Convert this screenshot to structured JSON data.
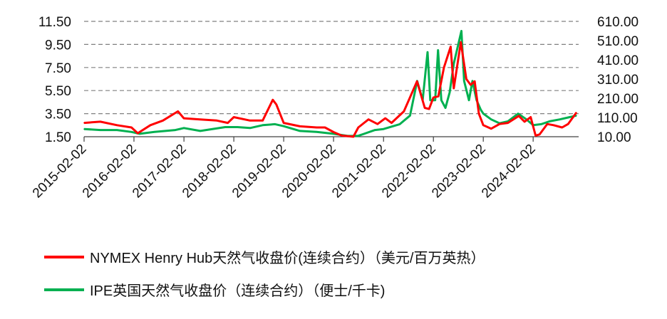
{
  "chart_data": {
    "type": "line",
    "x_tick_labels": [
      "2015-02-02",
      "2016-02-02",
      "2017-02-02",
      "2018-02-02",
      "2019-02-02",
      "2020-02-02",
      "2021-02-02",
      "2022-02-02",
      "2023-02-02",
      "2024-02-02"
    ],
    "y_left": {
      "ticks": [
        "1.50",
        "3.50",
        "5.50",
        "7.50",
        "9.50",
        "11.50"
      ],
      "range": [
        1.5,
        11.5
      ]
    },
    "y_right": {
      "ticks": [
        "10.00",
        "110.00",
        "210.00",
        "310.00",
        "410.00",
        "510.00",
        "610.00"
      ],
      "range": [
        10,
        610
      ]
    },
    "grid": "dashed horizontal",
    "legend_position": "bottom",
    "series": [
      {
        "name": "NYMEX Henry Hub天然气收盘价(连续合约）（美元/百万英热）",
        "axis": "left",
        "color": "#ff0000",
        "points": [
          [
            "2015-02-02",
            2.7
          ],
          [
            "2015-06-01",
            2.8
          ],
          [
            "2015-10-01",
            2.5
          ],
          [
            "2016-01-15",
            2.3
          ],
          [
            "2016-03-01",
            1.8
          ],
          [
            "2016-06-01",
            2.5
          ],
          [
            "2016-09-01",
            2.9
          ],
          [
            "2016-12-20",
            3.7
          ],
          [
            "2017-02-01",
            3.1
          ],
          [
            "2017-06-01",
            3.0
          ],
          [
            "2017-10-01",
            2.9
          ],
          [
            "2017-12-20",
            2.7
          ],
          [
            "2018-02-02",
            3.2
          ],
          [
            "2018-06-01",
            2.9
          ],
          [
            "2018-09-01",
            2.9
          ],
          [
            "2018-11-14",
            4.7
          ],
          [
            "2018-12-10",
            4.3
          ],
          [
            "2019-02-02",
            2.7
          ],
          [
            "2019-06-01",
            2.4
          ],
          [
            "2019-10-01",
            2.3
          ],
          [
            "2019-12-01",
            2.3
          ],
          [
            "2020-02-02",
            1.9
          ],
          [
            "2020-04-01",
            1.6
          ],
          [
            "2020-06-26",
            1.5
          ],
          [
            "2020-08-01",
            2.3
          ],
          [
            "2020-10-15",
            3.0
          ],
          [
            "2020-12-20",
            2.6
          ],
          [
            "2021-02-15",
            3.1
          ],
          [
            "2021-04-01",
            2.7
          ],
          [
            "2021-07-01",
            3.7
          ],
          [
            "2021-10-05",
            6.3
          ],
          [
            "2021-12-01",
            4.0
          ],
          [
            "2022-01-01",
            3.9
          ],
          [
            "2022-02-02",
            4.9
          ],
          [
            "2022-03-10",
            5.0
          ],
          [
            "2022-04-20",
            7.5
          ],
          [
            "2022-06-08",
            9.3
          ],
          [
            "2022-07-01",
            5.7
          ],
          [
            "2022-08-22",
            9.7
          ],
          [
            "2022-10-01",
            6.5
          ],
          [
            "2022-11-01",
            6.0
          ],
          [
            "2022-12-01",
            6.3
          ],
          [
            "2023-01-01",
            3.5
          ],
          [
            "2023-02-02",
            2.5
          ],
          [
            "2023-04-01",
            2.2
          ],
          [
            "2023-06-01",
            2.6
          ],
          [
            "2023-08-01",
            2.7
          ],
          [
            "2023-10-20",
            3.3
          ],
          [
            "2023-12-01",
            2.8
          ],
          [
            "2024-01-15",
            3.2
          ],
          [
            "2024-02-20",
            1.6
          ],
          [
            "2024-03-20",
            1.7
          ],
          [
            "2024-05-15",
            2.6
          ],
          [
            "2024-07-01",
            2.5
          ],
          [
            "2024-09-01",
            2.3
          ],
          [
            "2024-10-15",
            2.6
          ],
          [
            "2024-12-15",
            3.6
          ]
        ]
      },
      {
        "name": "IPE英国天然气收盘价（连续合约）（便士/千卡)",
        "axis": "right",
        "color": "#00b050",
        "points": [
          [
            "2015-02-02",
            50
          ],
          [
            "2015-06-01",
            45
          ],
          [
            "2015-10-01",
            45
          ],
          [
            "2016-01-15",
            35
          ],
          [
            "2016-03-15",
            25
          ],
          [
            "2016-07-01",
            35
          ],
          [
            "2016-12-01",
            45
          ],
          [
            "2017-02-02",
            55
          ],
          [
            "2017-06-01",
            40
          ],
          [
            "2017-12-01",
            60
          ],
          [
            "2018-03-01",
            60
          ],
          [
            "2018-06-01",
            55
          ],
          [
            "2018-09-01",
            70
          ],
          [
            "2018-12-01",
            75
          ],
          [
            "2019-02-02",
            65
          ],
          [
            "2019-06-01",
            40
          ],
          [
            "2019-10-01",
            35
          ],
          [
            "2020-02-02",
            25
          ],
          [
            "2020-05-15",
            14
          ],
          [
            "2020-08-01",
            15
          ],
          [
            "2020-12-01",
            45
          ],
          [
            "2021-02-02",
            50
          ],
          [
            "2021-06-01",
            75
          ],
          [
            "2021-08-15",
            120
          ],
          [
            "2021-10-06",
            300
          ],
          [
            "2021-11-15",
            200
          ],
          [
            "2021-12-21",
            450
          ],
          [
            "2022-01-10",
            200
          ],
          [
            "2022-02-15",
            200
          ],
          [
            "2022-03-08",
            460
          ],
          [
            "2022-04-01",
            200
          ],
          [
            "2022-05-01",
            160
          ],
          [
            "2022-06-01",
            240
          ],
          [
            "2022-07-01",
            390
          ],
          [
            "2022-08-26",
            560
          ],
          [
            "2022-09-15",
            300
          ],
          [
            "2022-10-20",
            200
          ],
          [
            "2022-11-15",
            300
          ],
          [
            "2022-12-15",
            200
          ],
          [
            "2023-01-15",
            150
          ],
          [
            "2023-02-02",
            130
          ],
          [
            "2023-04-01",
            100
          ],
          [
            "2023-06-01",
            80
          ],
          [
            "2023-08-01",
            90
          ],
          [
            "2023-10-15",
            130
          ],
          [
            "2023-12-15",
            100
          ],
          [
            "2024-02-02",
            70
          ],
          [
            "2024-04-01",
            75
          ],
          [
            "2024-06-01",
            90
          ],
          [
            "2024-08-15",
            100
          ],
          [
            "2024-10-15",
            110
          ],
          [
            "2024-12-15",
            120
          ]
        ]
      }
    ]
  }
}
